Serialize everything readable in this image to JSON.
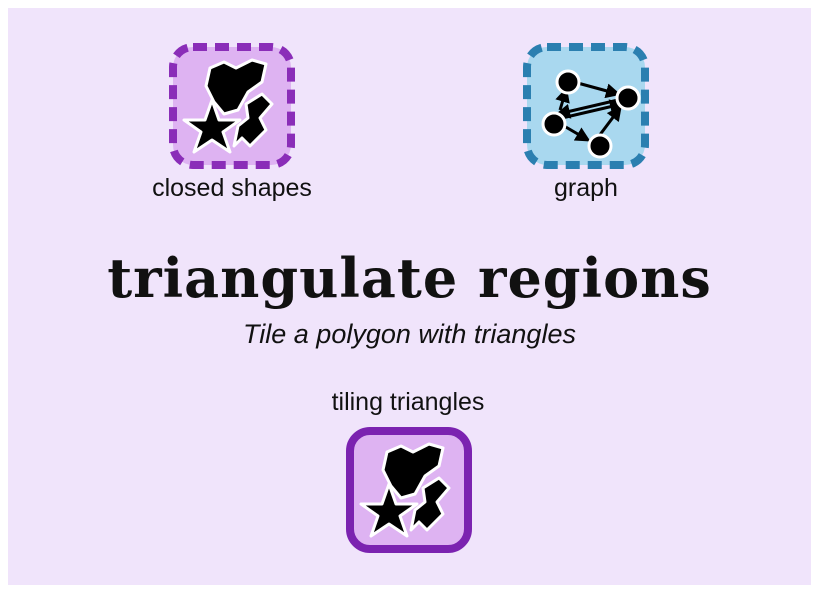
{
  "diagram": {
    "title": "triangulate regions",
    "subtitle": "Tile a polygon with triangles",
    "inputs": [
      {
        "label": "closed shapes",
        "icon": "closed-shapes-icon",
        "fill": "#deb3f2",
        "border": "#8a2db8",
        "border_style": "dashed"
      },
      {
        "label": "graph",
        "icon": "graph-icon",
        "fill": "#a9d8ef",
        "border": "#2b7fb0",
        "border_style": "dashed"
      }
    ],
    "output": {
      "label": "tiling triangles",
      "icon": "tiling-triangles-icon",
      "fill": "#deb3f2",
      "border": "#7b22b0",
      "border_style": "solid"
    }
  },
  "colors": {
    "background": "#f0e4fb",
    "text": "#111111"
  }
}
